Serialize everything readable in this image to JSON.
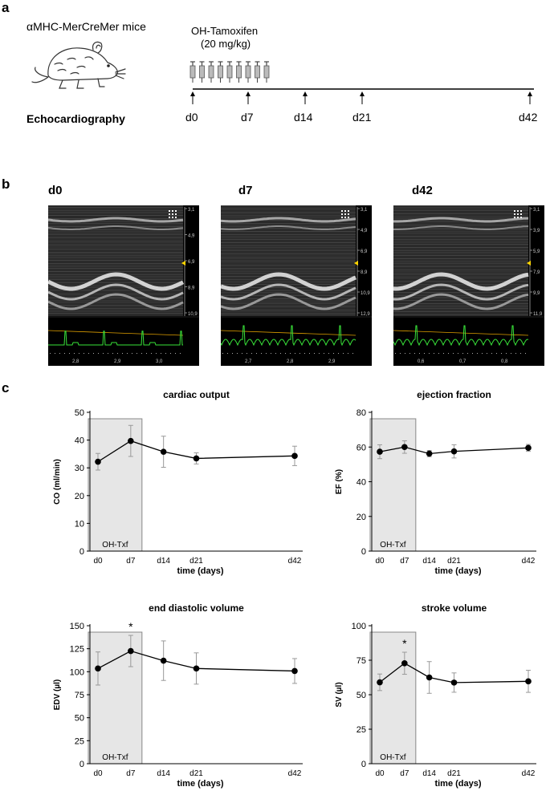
{
  "panel_a": {
    "letter": "a",
    "mouse_label": "αMHC-MerCreMer mice",
    "echo_label": "Echocardiography",
    "tamoxifen_name": "OH-Tamoxifen",
    "tamoxifen_dose": "(20 mg/kg)",
    "injection_count": 9,
    "days": [
      "d0",
      "d7",
      "d14",
      "d21",
      "d42"
    ]
  },
  "panel_b": {
    "letter": "b",
    "images": [
      {
        "title": "d0",
        "depth_ticks": [
          "3,1",
          "4,9",
          "6,9",
          "8,9",
          "10,9"
        ],
        "time_ticks": [
          "2,8",
          "2,9",
          "3,0"
        ]
      },
      {
        "title": "d7",
        "depth_ticks": [
          "3,1",
          "4,9",
          "6,9",
          "8,9",
          "10,9",
          "12,9"
        ],
        "time_ticks": [
          "2,7",
          "2,8",
          "2,9"
        ]
      },
      {
        "title": "d42",
        "depth_ticks": [
          "3,1",
          "3,9",
          "5,9",
          "7,9",
          "9,9",
          "11,9"
        ],
        "time_ticks": [
          "0,6",
          "0,7",
          "0,8"
        ]
      }
    ]
  },
  "panel_c": {
    "letter": "c"
  },
  "chart_data": [
    {
      "type": "line",
      "title": "cardiac output",
      "xlabel": "time (days)",
      "ylabel": "CO (ml/min)",
      "ylim": [
        0,
        50
      ],
      "yticks": [
        0,
        10,
        20,
        30,
        40,
        50
      ],
      "x": [
        0,
        7,
        14,
        21,
        42
      ],
      "xtick_labels": [
        "d0",
        "d7",
        "d14",
        "d21",
        "d42"
      ],
      "values": [
        32.2,
        39.7,
        35.8,
        33.4,
        34.3
      ],
      "errors": [
        3.0,
        5.6,
        5.6,
        2.0,
        3.5
      ],
      "shaded_range": [
        0,
        7
      ],
      "shaded_label": "OH-Txf",
      "significance": []
    },
    {
      "type": "line",
      "title": "ejection fraction",
      "xlabel": "time (days)",
      "ylabel": "EF (%)",
      "ylim": [
        0,
        80
      ],
      "yticks": [
        0,
        20,
        40,
        60,
        80
      ],
      "x": [
        0,
        7,
        14,
        21,
        42
      ],
      "xtick_labels": [
        "d0",
        "d7",
        "d14",
        "d21",
        "d42"
      ],
      "values": [
        57.3,
        60.0,
        56.2,
        57.5,
        59.5
      ],
      "errors": [
        4.0,
        3.6,
        1.8,
        3.8,
        2.0
      ],
      "shaded_range": [
        0,
        7
      ],
      "shaded_label": "OH-Txf",
      "significance": []
    },
    {
      "type": "line",
      "title": "end diastolic volume",
      "xlabel": "time (days)",
      "ylabel": "EDV (µl)",
      "ylim": [
        0,
        150
      ],
      "yticks": [
        0,
        25,
        50,
        75,
        100,
        125,
        150
      ],
      "x": [
        0,
        7,
        14,
        21,
        42
      ],
      "xtick_labels": [
        "d0",
        "d7",
        "d14",
        "d21",
        "d42"
      ],
      "values": [
        103.5,
        122.5,
        112.0,
        103.5,
        100.8
      ],
      "errors": [
        18.0,
        17.0,
        21.5,
        17.0,
        13.5
      ],
      "shaded_range": [
        0,
        7
      ],
      "shaded_label": "OH-Txf",
      "significance": [
        {
          "x": 7,
          "label": "*"
        }
      ]
    },
    {
      "type": "line",
      "title": "stroke volume",
      "xlabel": "time (days)",
      "ylabel": "SV (µl)",
      "ylim": [
        0,
        100
      ],
      "yticks": [
        0,
        25,
        50,
        75,
        100
      ],
      "x": [
        0,
        7,
        14,
        21,
        42
      ],
      "xtick_labels": [
        "d0",
        "d7",
        "d14",
        "d21",
        "d42"
      ],
      "values": [
        59.0,
        72.8,
        62.5,
        58.8,
        59.7
      ],
      "errors": [
        6.0,
        8.0,
        11.5,
        7.0,
        8.0
      ],
      "shaded_range": [
        0,
        7
      ],
      "shaded_label": "OH-Txf",
      "significance": [
        {
          "x": 7,
          "label": "*"
        }
      ]
    }
  ]
}
